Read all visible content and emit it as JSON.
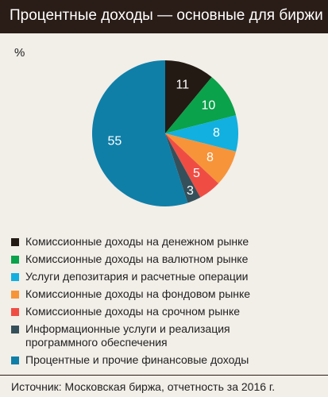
{
  "chart_data": {
    "type": "pie",
    "title": "Процентные доходы — основные для биржи",
    "unit_label": "%",
    "categories": [
      "Комиссионные доходы на денежном рынке",
      "Комиссионные доходы на валютном рынке",
      "Услуги депозитария и расчетные операции",
      "Комиссионные доходы на фондовом рынке",
      "Комиссионные доходы на срочном рынке",
      "Информационные услуги и реализация программного обеспечения",
      "Процентные и прочие финансовые доходы"
    ],
    "values": [
      11,
      10,
      8,
      8,
      5,
      3,
      55
    ],
    "colors": [
      "#231a14",
      "#0aa24a",
      "#12b0e0",
      "#f7943a",
      "#ef4d44",
      "#35505a",
      "#0f7fa8"
    ],
    "source": "Источник: Московская биржа, отчетность за 2016 г."
  }
}
